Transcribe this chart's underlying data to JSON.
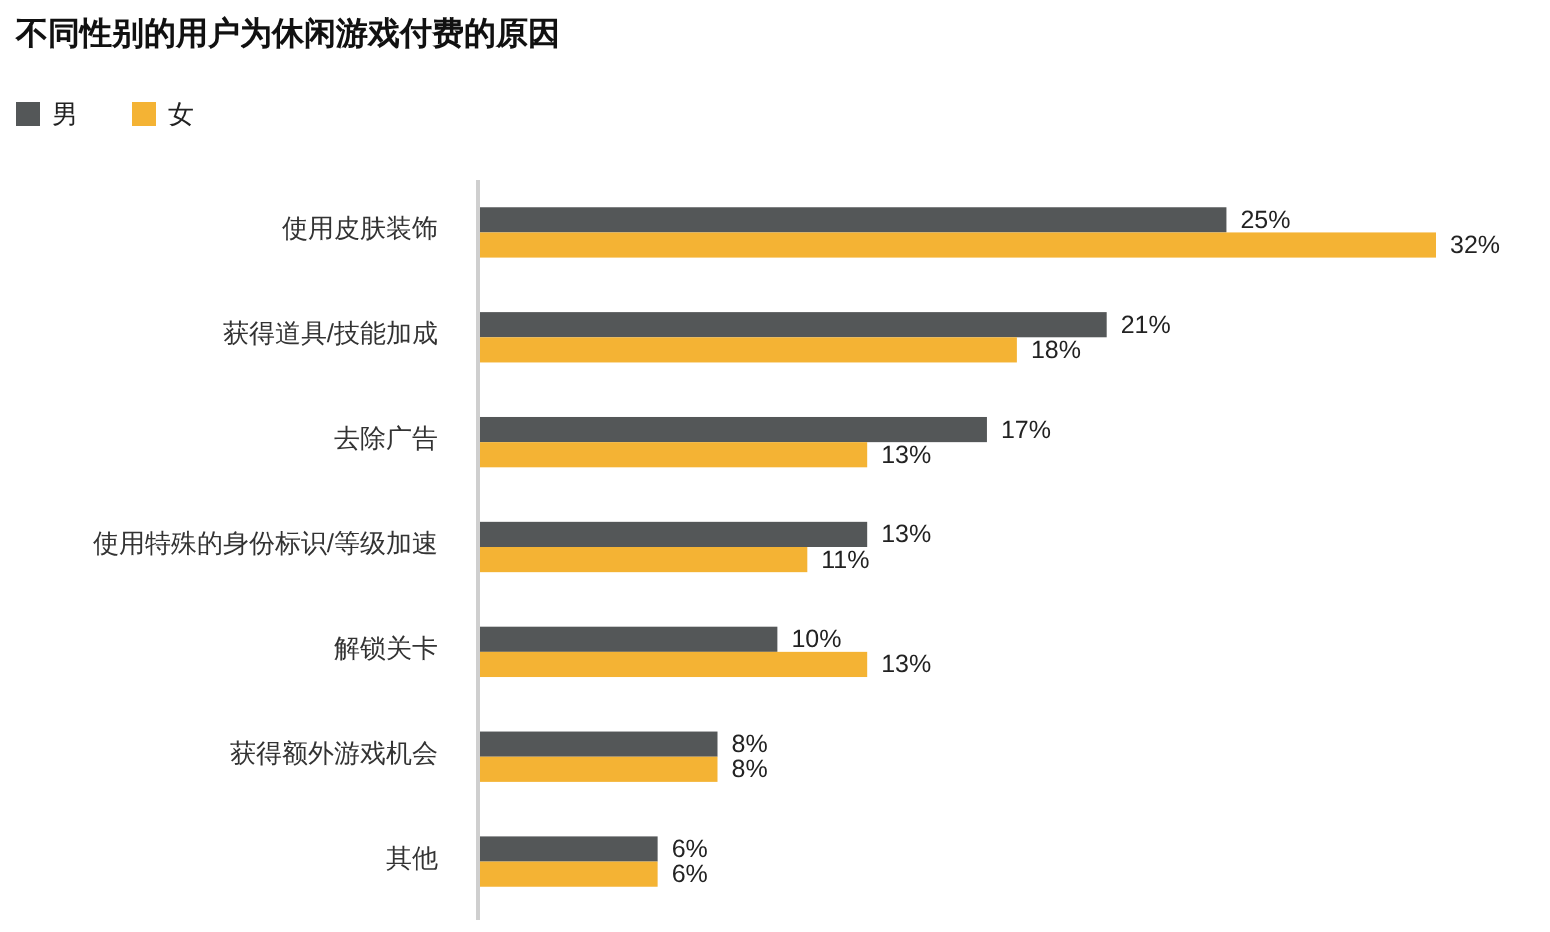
{
  "chart_data": {
    "type": "bar",
    "orientation": "horizontal",
    "title": "不同性别的用户为休闲游戏付费的原因",
    "categories": [
      "使用皮肤装饰",
      "获得道具/技能加成",
      "去除广告",
      "使用特殊的身份标识/等级加速",
      "解锁关卡",
      "获得额外游戏机会",
      "其他"
    ],
    "series": [
      {
        "name": "男",
        "color": "#545758",
        "values": [
          25,
          21,
          17,
          13,
          10,
          8,
          6
        ],
        "value_labels": [
          "25%",
          "21%",
          "17%",
          "13%",
          "10%",
          "8%",
          "6%"
        ]
      },
      {
        "name": "女",
        "color": "#f4b334",
        "values": [
          32,
          18,
          13,
          11,
          13,
          8,
          6
        ],
        "value_labels": [
          "32%",
          "18%",
          "13%",
          "11%",
          "13%",
          "8%",
          "6%"
        ]
      }
    ],
    "legend": "top left",
    "tick_labels": "y"
  }
}
